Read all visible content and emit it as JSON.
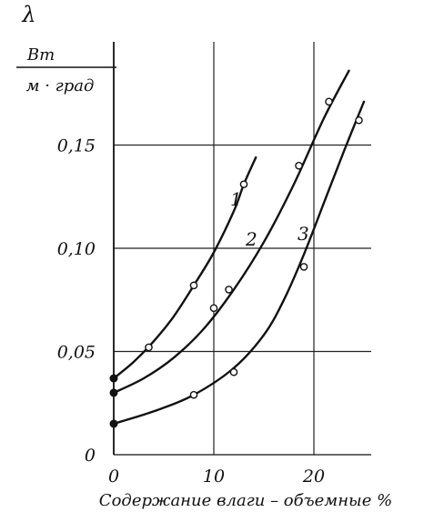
{
  "chart_data": {
    "type": "line",
    "title": "",
    "ylabel": {
      "symbol": "λ",
      "unit_numerator": "Вт",
      "unit_denominator": "м · град"
    },
    "xlabel": "Содержание влаги – объемные %",
    "xlim": [
      0,
      25
    ],
    "ylim": [
      0,
      0.2
    ],
    "grid": true,
    "x_ticks": [
      {
        "value": 0,
        "label": "0"
      },
      {
        "value": 10,
        "label": "10"
      },
      {
        "value": 20,
        "label": "20"
      }
    ],
    "y_ticks": [
      {
        "value": 0,
        "label": "0"
      },
      {
        "value": 0.05,
        "label": "0,05"
      },
      {
        "value": 0.1,
        "label": "0,10"
      },
      {
        "value": 0.15,
        "label": "0,15"
      }
    ],
    "series": [
      {
        "name": "1",
        "curve_x": [
          0,
          2,
          4,
          6,
          8,
          10,
          12,
          13,
          14.2
        ],
        "curve_y": [
          0.037,
          0.045,
          0.055,
          0.067,
          0.082,
          0.098,
          0.118,
          0.131,
          0.144
        ],
        "points": [
          [
            0,
            0.037
          ],
          [
            3.5,
            0.052
          ],
          [
            8,
            0.082
          ],
          [
            13,
            0.131
          ]
        ]
      },
      {
        "name": "2",
        "curve_x": [
          0,
          3,
          6,
          9,
          12,
          15,
          18,
          21,
          23.5
        ],
        "curve_y": [
          0.03,
          0.037,
          0.047,
          0.061,
          0.08,
          0.103,
          0.131,
          0.163,
          0.186
        ],
        "points": [
          [
            0,
            0.03
          ],
          [
            10,
            0.071
          ],
          [
            11.5,
            0.08
          ],
          [
            18.5,
            0.14
          ],
          [
            21.5,
            0.171
          ]
        ]
      },
      {
        "name": "3",
        "curve_x": [
          0,
          4,
          8,
          12,
          15,
          17,
          19,
          21,
          23,
          25
        ],
        "curve_y": [
          0.015,
          0.021,
          0.029,
          0.042,
          0.058,
          0.075,
          0.097,
          0.122,
          0.147,
          0.171
        ],
        "points": [
          [
            0,
            0.015
          ],
          [
            8,
            0.029
          ],
          [
            12,
            0.04
          ],
          [
            19,
            0.091
          ],
          [
            24.5,
            0.162
          ]
        ]
      }
    ]
  }
}
